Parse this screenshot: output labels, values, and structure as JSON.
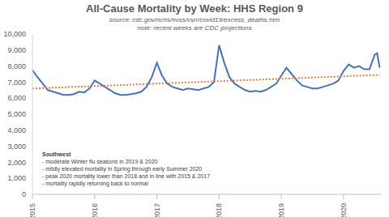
{
  "chart_data": {
    "type": "line",
    "title": "All-Cause Mortality by Week: HHS Region 9",
    "subtitle": "source: cdc.gov/nchs/nvss/vsrr/covid19/excess_deaths.htm",
    "note": "note: recent weeks are CDC projections",
    "annotations": {
      "heading": "Southwest",
      "bullets": [
        "- moderate Winter flu seasons in 2019 & 2020",
        "- mildly elevated mortality in Spring through early Summer 2020",
        "- peak 2020 mortality lower than 2018 and in line with 2015 & 2017",
        "- mortality rapidly returning back to normal"
      ]
    },
    "xlim": [
      2015,
      2020.6
    ],
    "xticks": [
      2015,
      2016,
      2017,
      2018,
      2019,
      2020
    ],
    "ylim": [
      0,
      10000
    ],
    "yticks": [
      0,
      {
        "value": 1000,
        "label": "1,000"
      },
      {
        "value": 2000,
        "label": "2,000"
      },
      {
        "value": 3000,
        "label": "3,000"
      },
      {
        "value": 4000,
        "label": "4,000"
      },
      {
        "value": 5000,
        "label": "5,000"
      },
      {
        "value": 6000,
        "label": "6,000"
      },
      {
        "value": 7000,
        "label": "7,000"
      },
      {
        "value": 8000,
        "label": "8,000"
      },
      {
        "value": 9000,
        "label": "9,000"
      },
      {
        "value": 10000,
        "label": "10,000"
      }
    ],
    "grid": false,
    "series": [
      {
        "color": "#4472c4",
        "line_style": "solid",
        "x": [
          2015,
          2015.083,
          2015.167,
          2015.25,
          2015.333,
          2015.417,
          2015.5,
          2015.583,
          2015.667,
          2015.75,
          2015.833,
          2015.917,
          2016,
          2016.083,
          2016.167,
          2016.25,
          2016.333,
          2016.417,
          2016.5,
          2016.583,
          2016.667,
          2016.75,
          2016.833,
          2016.917,
          2017,
          2017.083,
          2017.167,
          2017.25,
          2017.333,
          2017.417,
          2017.5,
          2017.583,
          2017.667,
          2017.75,
          2017.833,
          2017.917,
          2018,
          2018.083,
          2018.167,
          2018.25,
          2018.333,
          2018.417,
          2018.5,
          2018.583,
          2018.667,
          2018.75,
          2018.833,
          2018.917,
          2019,
          2019.083,
          2019.167,
          2019.25,
          2019.333,
          2019.417,
          2019.5,
          2019.583,
          2019.667,
          2019.75,
          2019.833,
          2019.917,
          2020,
          2020.083,
          2020.167,
          2020.25,
          2020.333,
          2020.417,
          2020.5,
          2020.54,
          2020.58
        ],
        "values": [
          7750,
          7300,
          6900,
          6500,
          6400,
          6300,
          6200,
          6200,
          6250,
          6400,
          6350,
          6600,
          7100,
          6900,
          6700,
          6500,
          6300,
          6200,
          6200,
          6250,
          6300,
          6400,
          6700,
          7300,
          8200,
          7400,
          6900,
          6700,
          6600,
          6500,
          6600,
          6550,
          6500,
          6600,
          6700,
          7000,
          9300,
          8200,
          7300,
          6900,
          6700,
          6500,
          6400,
          6450,
          6400,
          6500,
          6700,
          6900,
          7400,
          7900,
          7500,
          7100,
          6800,
          6700,
          6600,
          6600,
          6700,
          6800,
          6900,
          7100,
          7700,
          8100,
          7900,
          8000,
          7800,
          7800,
          8700,
          8800,
          7900
        ]
      },
      {
        "color": "#ed7d31",
        "line_style": "dotted",
        "x": [
          2015,
          2020.58
        ],
        "values": [
          6600,
          7450
        ]
      }
    ]
  }
}
